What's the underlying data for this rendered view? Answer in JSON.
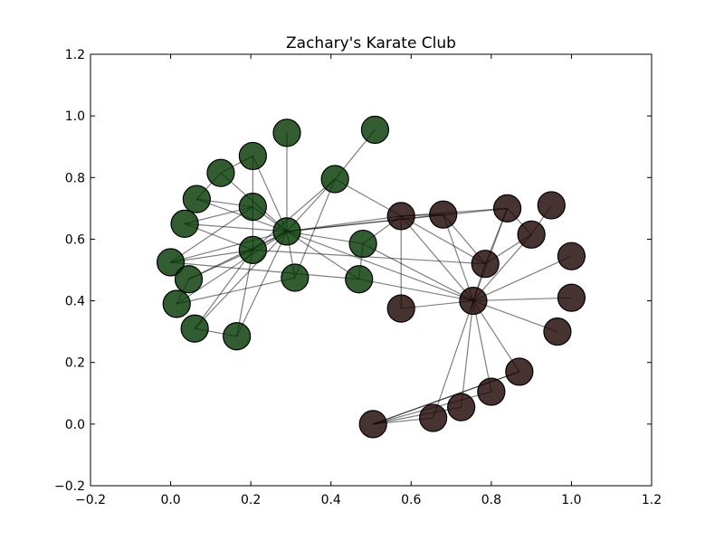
{
  "chart_data": {
    "type": "network",
    "title": "Zachary's Karate Club",
    "xlim": [
      -0.2,
      1.2
    ],
    "ylim": [
      -0.2,
      1.2
    ],
    "x_ticks": [
      -0.2,
      0.0,
      0.2,
      0.4,
      0.6,
      0.8,
      1.0,
      1.2
    ],
    "x_tick_labels": [
      "−0.2",
      "0.0",
      "0.2",
      "0.4",
      "0.6",
      "0.8",
      "1.0",
      "1.2"
    ],
    "y_ticks": [
      -0.2,
      0.0,
      0.2,
      0.4,
      0.6,
      0.8,
      1.0,
      1.2
    ],
    "y_tick_labels": [
      "−0.2",
      "0.0",
      "0.2",
      "0.4",
      "0.6",
      "0.8",
      "1.0",
      "1.2"
    ],
    "grid": false,
    "group_colors": {
      "green": "#003300",
      "brown": "#1a0000"
    },
    "nodes": [
      {
        "id": 0,
        "x": 0.29,
        "y": 0.625,
        "group": "green"
      },
      {
        "id": 1,
        "x": 0.205,
        "y": 0.565,
        "group": "green"
      },
      {
        "id": 2,
        "x": 0.41,
        "y": 0.795,
        "group": "green"
      },
      {
        "id": 3,
        "x": 0.29,
        "y": 0.945,
        "group": "green"
      },
      {
        "id": 4,
        "x": 0.205,
        "y": 0.87,
        "group": "green"
      },
      {
        "id": 5,
        "x": 0.125,
        "y": 0.815,
        "group": "green"
      },
      {
        "id": 6,
        "x": 0.065,
        "y": 0.73,
        "group": "green"
      },
      {
        "id": 7,
        "x": 0.035,
        "y": 0.65,
        "group": "green"
      },
      {
        "id": 8,
        "x": 0.205,
        "y": 0.705,
        "group": "green"
      },
      {
        "id": 9,
        "x": 0.0,
        "y": 0.525,
        "group": "green"
      },
      {
        "id": 10,
        "x": 0.045,
        "y": 0.47,
        "group": "green"
      },
      {
        "id": 11,
        "x": 0.015,
        "y": 0.39,
        "group": "green"
      },
      {
        "id": 12,
        "x": 0.06,
        "y": 0.31,
        "group": "green"
      },
      {
        "id": 13,
        "x": 0.165,
        "y": 0.285,
        "group": "green"
      },
      {
        "id": 14,
        "x": 0.31,
        "y": 0.475,
        "group": "green"
      },
      {
        "id": 15,
        "x": 0.48,
        "y": 0.585,
        "group": "green"
      },
      {
        "id": 16,
        "x": 0.47,
        "y": 0.47,
        "group": "green"
      },
      {
        "id": 17,
        "x": 0.51,
        "y": 0.955,
        "group": "green"
      },
      {
        "id": 18,
        "x": 0.575,
        "y": 0.675,
        "group": "brown"
      },
      {
        "id": 19,
        "x": 0.68,
        "y": 0.68,
        "group": "brown"
      },
      {
        "id": 20,
        "x": 0.84,
        "y": 0.7,
        "group": "brown"
      },
      {
        "id": 21,
        "x": 0.95,
        "y": 0.71,
        "group": "brown"
      },
      {
        "id": 22,
        "x": 0.9,
        "y": 0.615,
        "group": "brown"
      },
      {
        "id": 23,
        "x": 1.0,
        "y": 0.545,
        "group": "brown"
      },
      {
        "id": 24,
        "x": 0.785,
        "y": 0.52,
        "group": "brown"
      },
      {
        "id": 25,
        "x": 1.0,
        "y": 0.41,
        "group": "brown"
      },
      {
        "id": 26,
        "x": 0.755,
        "y": 0.4,
        "group": "brown"
      },
      {
        "id": 27,
        "x": 0.575,
        "y": 0.375,
        "group": "brown"
      },
      {
        "id": 28,
        "x": 0.965,
        "y": 0.3,
        "group": "brown"
      },
      {
        "id": 29,
        "x": 0.87,
        "y": 0.17,
        "group": "brown"
      },
      {
        "id": 30,
        "x": 0.8,
        "y": 0.105,
        "group": "brown"
      },
      {
        "id": 31,
        "x": 0.725,
        "y": 0.055,
        "group": "brown"
      },
      {
        "id": 32,
        "x": 0.655,
        "y": 0.02,
        "group": "brown"
      },
      {
        "id": 33,
        "x": 0.505,
        "y": 0.0,
        "group": "brown"
      }
    ],
    "edges": [
      [
        0,
        1
      ],
      [
        0,
        2
      ],
      [
        0,
        3
      ],
      [
        0,
        4
      ],
      [
        0,
        5
      ],
      [
        0,
        6
      ],
      [
        0,
        7
      ],
      [
        0,
        8
      ],
      [
        0,
        9
      ],
      [
        0,
        10
      ],
      [
        0,
        11
      ],
      [
        0,
        12
      ],
      [
        0,
        13
      ],
      [
        0,
        14
      ],
      [
        0,
        15
      ],
      [
        0,
        16
      ],
      [
        0,
        18
      ],
      [
        0,
        19
      ],
      [
        0,
        20
      ],
      [
        0,
        26
      ],
      [
        1,
        2
      ],
      [
        1,
        8
      ],
      [
        1,
        10
      ],
      [
        1,
        12
      ],
      [
        1,
        13
      ],
      [
        1,
        7
      ],
      [
        1,
        9
      ],
      [
        1,
        24
      ],
      [
        2,
        17
      ],
      [
        2,
        18
      ],
      [
        2,
        14
      ],
      [
        4,
        5
      ],
      [
        4,
        8
      ],
      [
        5,
        6
      ],
      [
        6,
        8
      ],
      [
        7,
        8
      ],
      [
        8,
        9
      ],
      [
        9,
        16
      ],
      [
        10,
        11
      ],
      [
        11,
        14
      ],
      [
        12,
        13
      ],
      [
        15,
        16
      ],
      [
        15,
        26
      ],
      [
        16,
        26
      ],
      [
        18,
        19
      ],
      [
        18,
        20
      ],
      [
        18,
        24
      ],
      [
        18,
        26
      ],
      [
        18,
        27
      ],
      [
        18,
        15
      ],
      [
        19,
        24
      ],
      [
        19,
        26
      ],
      [
        20,
        22
      ],
      [
        20,
        24
      ],
      [
        20,
        26
      ],
      [
        21,
        22
      ],
      [
        22,
        24
      ],
      [
        22,
        26
      ],
      [
        23,
        26
      ],
      [
        25,
        26
      ],
      [
        26,
        28
      ],
      [
        26,
        24
      ],
      [
        26,
        27
      ],
      [
        26,
        29
      ],
      [
        26,
        30
      ],
      [
        26,
        31
      ],
      [
        26,
        32
      ],
      [
        29,
        33
      ],
      [
        30,
        33
      ],
      [
        31,
        33
      ],
      [
        32,
        33
      ],
      [
        33,
        29
      ]
    ]
  }
}
